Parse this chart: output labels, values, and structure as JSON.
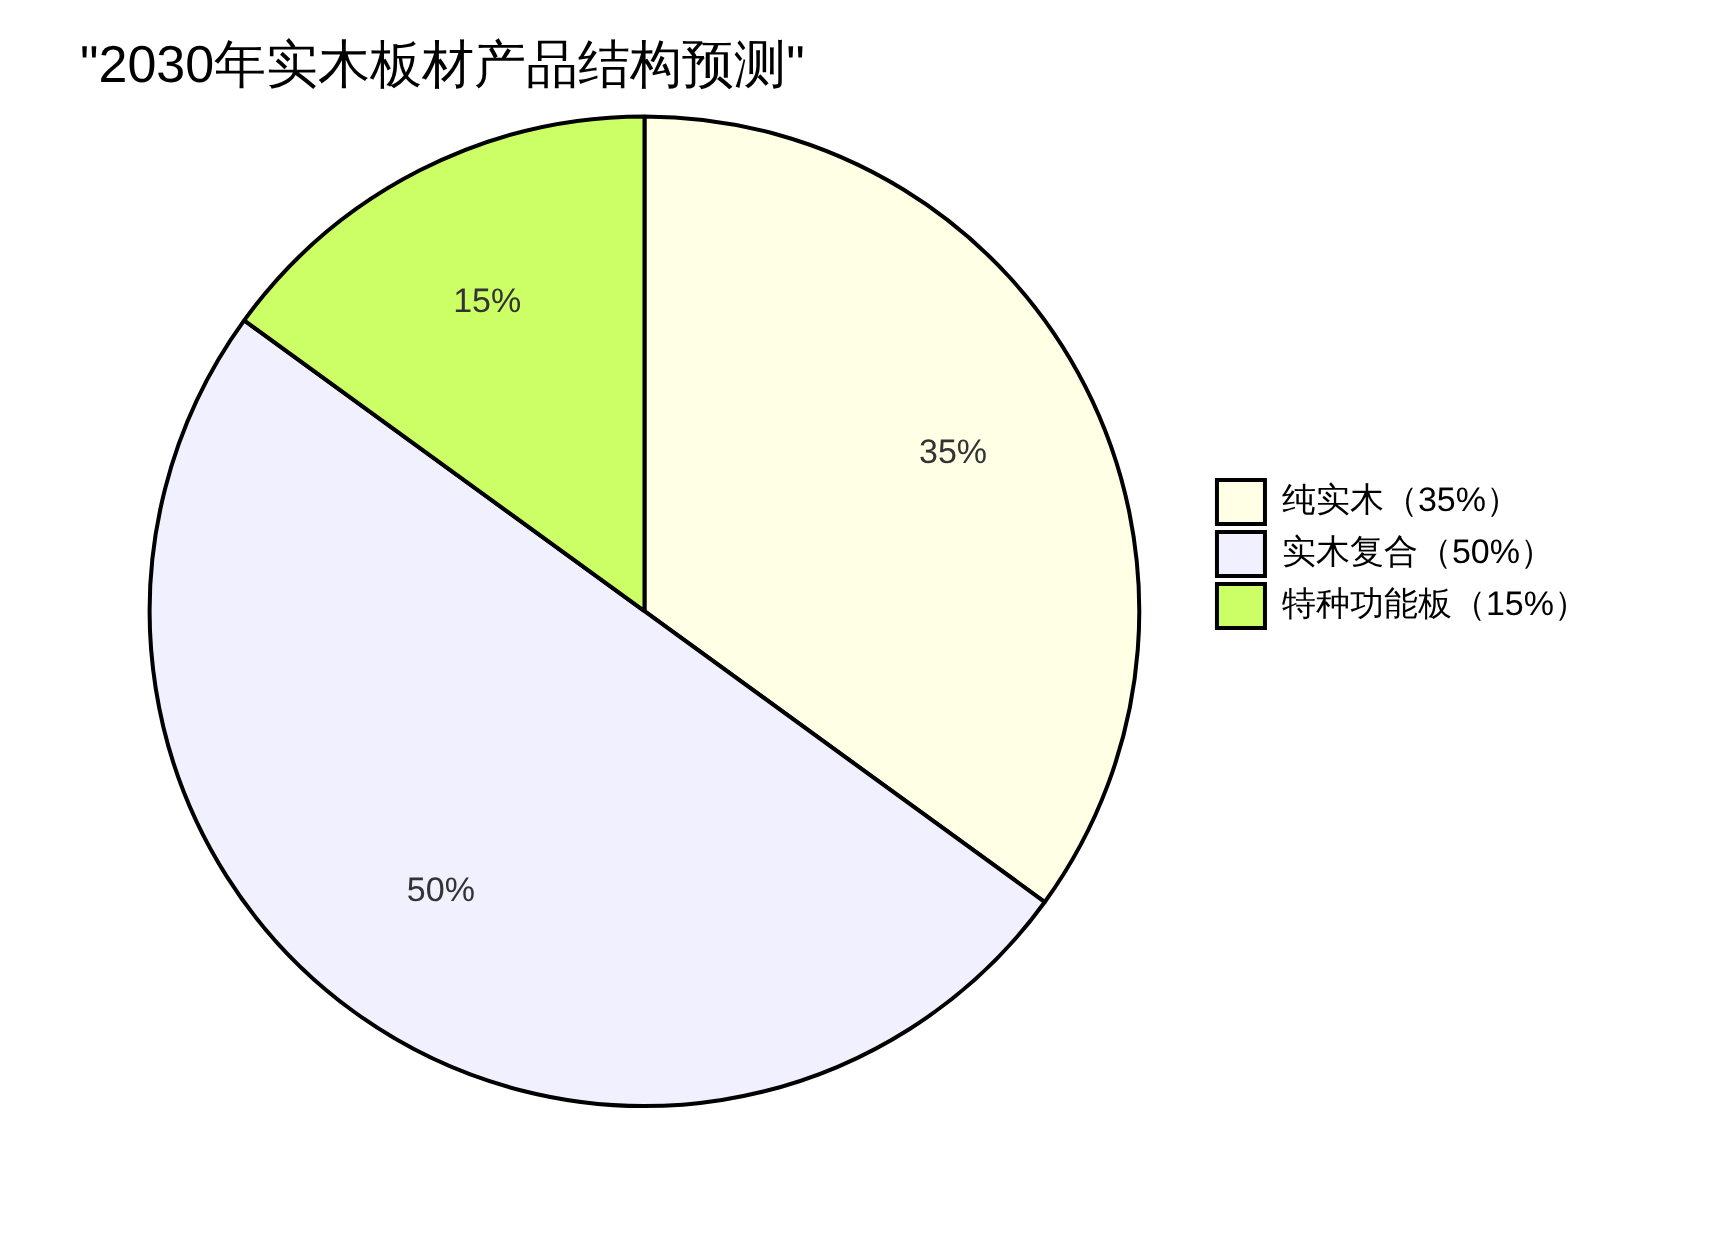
{
  "chart_data": {
    "type": "pie",
    "title": "\"2030年实木板材产品结构预测\"",
    "categories": [
      "纯实木（35%）",
      "实木复合（50%）",
      "特种功能板（15%）"
    ],
    "values": [
      35,
      50,
      15
    ],
    "colors": [
      "#ffffe6",
      "#f0f0ff",
      "#ccff66"
    ],
    "value_labels": [
      "35%",
      "50%",
      "15%"
    ],
    "legend": "right"
  }
}
